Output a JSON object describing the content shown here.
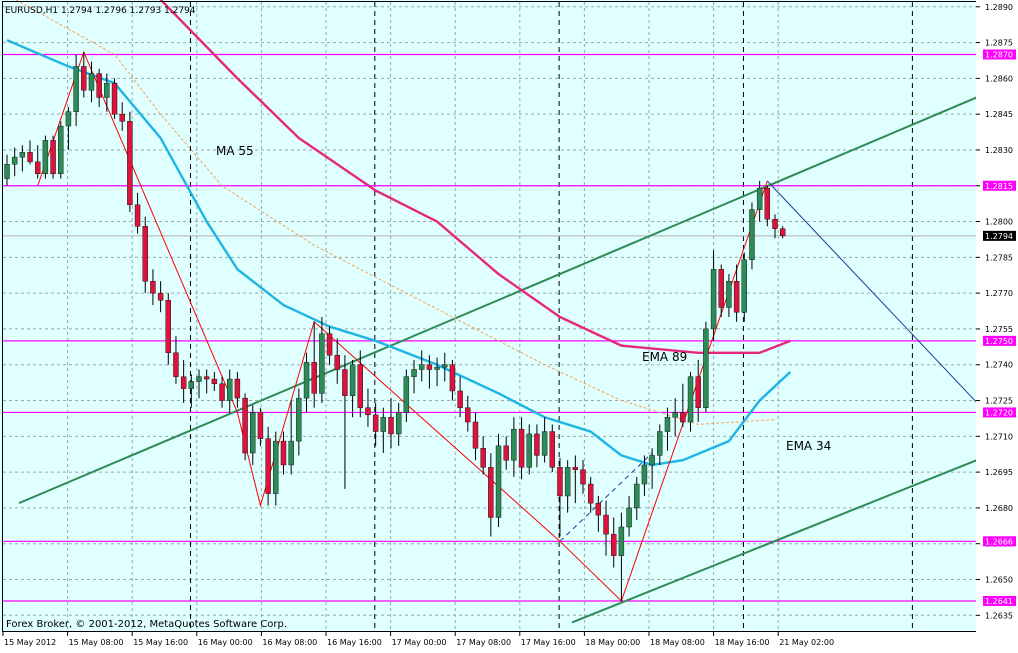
{
  "header": {
    "text": "EURUSD,H1  1.2794 1.2796 1.2793 1.2794"
  },
  "footer": {
    "copyright": "Forex Broker, © 2001-2012, MetaQuotes Software Corp."
  },
  "colors": {
    "background": "#e0ffff",
    "grid": "#9aa7a7",
    "bull_candle": "#2e8b57",
    "bear_candle": "#dc143c",
    "wick": "#000000",
    "ma55": "#f4a460",
    "ema34": "#1eb4e6",
    "ema89": "#e6287d",
    "channel": "#2e8b57",
    "horizontal_levels": "#ff00ff",
    "zigzag": "#ff0000",
    "projection": "#1e3c96",
    "separators": "#000000"
  },
  "chart_data": {
    "type": "candlestick",
    "symbol": "EURUSD",
    "timeframe": "H1",
    "ylim": [
      1.2628,
      1.2892
    ],
    "current_price": "1.2794",
    "y_ticks": [
      "1.2890",
      "1.2875",
      "1.2860",
      "1.2845",
      "1.2830",
      "1.2815",
      "1.2800",
      "1.2785",
      "1.2770",
      "1.2755",
      "1.2740",
      "1.2725",
      "1.2710",
      "1.2695",
      "1.2680",
      "1.2665",
      "1.2650",
      "1.2635"
    ],
    "x_ticks": [
      "15 May 2012",
      "15 May 08:00",
      "15 May 16:00",
      "16 May 00:00",
      "16 May 08:00",
      "16 May 16:00",
      "17 May 00:00",
      "17 May 08:00",
      "17 May 16:00",
      "18 May 00:00",
      "18 May 08:00",
      "18 May 16:00",
      "21 May 02:00"
    ],
    "horizontal_levels": [
      "1.2870",
      "1.2815",
      "1.2750",
      "1.2720",
      "1.2666",
      "1.2641"
    ],
    "annotations": [
      "MA 55",
      "EMA 89",
      "EMA 34"
    ],
    "candles_ohlc": [
      [
        1.2818,
        1.2828,
        1.2815,
        1.2824
      ],
      [
        1.2824,
        1.2831,
        1.2819,
        1.2827
      ],
      [
        1.2827,
        1.2832,
        1.2821,
        1.2829
      ],
      [
        1.2829,
        1.2834,
        1.2824,
        1.2825
      ],
      [
        1.2825,
        1.2832,
        1.2818,
        1.282
      ],
      [
        1.282,
        1.2836,
        1.2818,
        1.2834
      ],
      [
        1.2834,
        1.2836,
        1.2818,
        1.282
      ],
      [
        1.282,
        1.2842,
        1.2818,
        1.284
      ],
      [
        1.284,
        1.2848,
        1.283,
        1.2846
      ],
      [
        1.2846,
        1.287,
        1.284,
        1.2865
      ],
      [
        1.2865,
        1.2871,
        1.2852,
        1.2855
      ],
      [
        1.2855,
        1.2867,
        1.285,
        1.2862
      ],
      [
        1.2862,
        1.2864,
        1.2848,
        1.2852
      ],
      [
        1.2852,
        1.2862,
        1.2846,
        1.2858
      ],
      [
        1.2858,
        1.286,
        1.2843,
        1.2845
      ],
      [
        1.2845,
        1.285,
        1.2838,
        1.2842
      ],
      [
        1.2842,
        1.2846,
        1.2804,
        1.2807
      ],
      [
        1.2807,
        1.2812,
        1.2795,
        1.2798
      ],
      [
        1.2798,
        1.2802,
        1.277,
        1.2775
      ],
      [
        1.2775,
        1.278,
        1.2765,
        1.277
      ],
      [
        1.277,
        1.2775,
        1.2762,
        1.2767
      ],
      [
        1.2767,
        1.277,
        1.274,
        1.2745
      ],
      [
        1.2745,
        1.2752,
        1.2732,
        1.2735
      ],
      [
        1.2735,
        1.2742,
        1.2724,
        1.273
      ],
      [
        1.273,
        1.2736,
        1.2722,
        1.2733
      ],
      [
        1.2733,
        1.2738,
        1.2726,
        1.2735
      ],
      [
        1.2735,
        1.2738,
        1.2728,
        1.2734
      ],
      [
        1.2734,
        1.2737,
        1.2729,
        1.2732
      ],
      [
        1.2732,
        1.2735,
        1.2722,
        1.2725
      ],
      [
        1.2725,
        1.2738,
        1.272,
        1.2734
      ],
      [
        1.2734,
        1.2737,
        1.2722,
        1.2726
      ],
      [
        1.2726,
        1.2728,
        1.27,
        1.2703
      ],
      [
        1.2703,
        1.2723,
        1.2698,
        1.272
      ],
      [
        1.272,
        1.2722,
        1.2706,
        1.2709
      ],
      [
        1.2709,
        1.2714,
        1.2681,
        1.2686
      ],
      [
        1.2686,
        1.2712,
        1.2681,
        1.2708
      ],
      [
        1.2708,
        1.2712,
        1.2694,
        1.2698
      ],
      [
        1.2698,
        1.2725,
        1.2694,
        1.2708
      ],
      [
        1.2708,
        1.273,
        1.2702,
        1.2726
      ],
      [
        1.2726,
        1.2745,
        1.272,
        1.2741
      ],
      [
        1.2741,
        1.2758,
        1.2722,
        1.2728
      ],
      [
        1.2728,
        1.276,
        1.2724,
        1.2753
      ],
      [
        1.2753,
        1.2756,
        1.274,
        1.2744
      ],
      [
        1.2744,
        1.2751,
        1.2732,
        1.2738
      ],
      [
        1.2738,
        1.2744,
        1.2688,
        1.2727
      ],
      [
        1.2727,
        1.2742,
        1.2718,
        1.274
      ],
      [
        1.274,
        1.2746,
        1.2718,
        1.2722
      ],
      [
        1.2722,
        1.273,
        1.2714,
        1.2719
      ],
      [
        1.2719,
        1.2724,
        1.2706,
        1.2712
      ],
      [
        1.2712,
        1.2722,
        1.2703,
        1.2718
      ],
      [
        1.2718,
        1.2726,
        1.2705,
        1.2711
      ],
      [
        1.2711,
        1.2724,
        1.2706,
        1.272
      ],
      [
        1.272,
        1.2738,
        1.2716,
        1.2735
      ],
      [
        1.2735,
        1.2742,
        1.2728,
        1.2738
      ],
      [
        1.2738,
        1.2746,
        1.2733,
        1.274
      ],
      [
        1.274,
        1.2744,
        1.273,
        1.2738
      ],
      [
        1.2738,
        1.2743,
        1.2731,
        1.2739
      ],
      [
        1.2739,
        1.2745,
        1.2733,
        1.274
      ],
      [
        1.274,
        1.2742,
        1.2725,
        1.2729
      ],
      [
        1.2729,
        1.2735,
        1.2718,
        1.2722
      ],
      [
        1.2722,
        1.2727,
        1.2712,
        1.2716
      ],
      [
        1.2716,
        1.272,
        1.27,
        1.2705
      ],
      [
        1.2705,
        1.271,
        1.2694,
        1.2697
      ],
      [
        1.2697,
        1.2703,
        1.2668,
        1.2676
      ],
      [
        1.2676,
        1.2711,
        1.2672,
        1.2706
      ],
      [
        1.2706,
        1.271,
        1.2696,
        1.27
      ],
      [
        1.27,
        1.2718,
        1.2693,
        1.2713
      ],
      [
        1.2713,
        1.2718,
        1.2692,
        1.2697
      ],
      [
        1.2697,
        1.2715,
        1.2694,
        1.2711
      ],
      [
        1.2711,
        1.2715,
        1.2697,
        1.2702
      ],
      [
        1.2702,
        1.2718,
        1.2699,
        1.2712
      ],
      [
        1.2712,
        1.2715,
        1.2695,
        1.2697
      ],
      [
        1.2697,
        1.2701,
        1.2668,
        1.2685
      ],
      [
        1.2685,
        1.27,
        1.2678,
        1.2697
      ],
      [
        1.2697,
        1.2702,
        1.2682,
        1.2696
      ],
      [
        1.2696,
        1.27,
        1.2686,
        1.269
      ],
      [
        1.269,
        1.2693,
        1.2678,
        1.2682
      ],
      [
        1.2682,
        1.2685,
        1.267,
        1.2677
      ],
      [
        1.2677,
        1.2683,
        1.266,
        1.2669
      ],
      [
        1.2669,
        1.2676,
        1.2655,
        1.266
      ],
      [
        1.266,
        1.2678,
        1.2641,
        1.2672
      ],
      [
        1.2672,
        1.2685,
        1.2668,
        1.268
      ],
      [
        1.268,
        1.2693,
        1.2675,
        1.269
      ],
      [
        1.269,
        1.2702,
        1.2685,
        1.2698
      ],
      [
        1.2698,
        1.2705,
        1.2688,
        1.2702
      ],
      [
        1.2702,
        1.2715,
        1.2698,
        1.2712
      ],
      [
        1.2712,
        1.2722,
        1.2704,
        1.2718
      ],
      [
        1.2718,
        1.2726,
        1.271,
        1.272
      ],
      [
        1.272,
        1.2732,
        1.2714,
        1.2716
      ],
      [
        1.2716,
        1.2737,
        1.2712,
        1.2735
      ],
      [
        1.2735,
        1.2742,
        1.2716,
        1.2722
      ],
      [
        1.2722,
        1.2758,
        1.272,
        1.2755
      ],
      [
        1.2755,
        1.2788,
        1.275,
        1.278
      ],
      [
        1.278,
        1.2782,
        1.276,
        1.2764
      ],
      [
        1.2764,
        1.2778,
        1.276,
        1.2775
      ],
      [
        1.2775,
        1.2782,
        1.2758,
        1.2762
      ],
      [
        1.2762,
        1.2787,
        1.2758,
        1.2784
      ],
      [
        1.2784,
        1.2808,
        1.278,
        1.2805
      ],
      [
        1.2805,
        1.2817,
        1.28,
        1.2814
      ],
      [
        1.2814,
        1.2815,
        1.2798,
        1.2801
      ],
      [
        1.2801,
        1.2803,
        1.2793,
        1.2797
      ],
      [
        1.2797,
        1.2798,
        1.2793,
        1.2794
      ]
    ],
    "ma55": [
      [
        0,
        1.2895
      ],
      [
        14,
        1.287
      ],
      [
        20,
        1.2845
      ],
      [
        28,
        1.2815
      ],
      [
        40,
        1.279
      ],
      [
        55,
        1.2765
      ],
      [
        70,
        1.274
      ],
      [
        80,
        1.2725
      ],
      [
        90,
        1.2715
      ],
      [
        100,
        1.2717
      ]
    ],
    "ema34": [
      [
        0,
        1.2876
      ],
      [
        8,
        1.2865
      ],
      [
        14,
        1.2858
      ],
      [
        20,
        1.2835
      ],
      [
        26,
        1.28
      ],
      [
        30,
        1.278
      ],
      [
        36,
        1.2765
      ],
      [
        42,
        1.2756
      ],
      [
        48,
        1.275
      ],
      [
        56,
        1.274
      ],
      [
        64,
        1.2728
      ],
      [
        70,
        1.2718
      ],
      [
        76,
        1.2712
      ],
      [
        80,
        1.2702
      ],
      [
        84,
        1.2698
      ],
      [
        88,
        1.27
      ],
      [
        94,
        1.2708
      ],
      [
        98,
        1.2725
      ],
      [
        102,
        1.2737
      ]
    ],
    "ema89": [
      [
        20,
        1.2893
      ],
      [
        30,
        1.286
      ],
      [
        38,
        1.2835
      ],
      [
        48,
        1.2813
      ],
      [
        56,
        1.28
      ],
      [
        64,
        1.2778
      ],
      [
        72,
        1.276
      ],
      [
        80,
        1.2748
      ],
      [
        90,
        1.2745
      ],
      [
        98,
        1.2745
      ],
      [
        102,
        1.275
      ]
    ],
    "zigzag": [
      [
        4,
        1.2815
      ],
      [
        10,
        1.2871
      ],
      [
        30,
        1.272
      ],
      [
        33,
        1.2681
      ],
      [
        40,
        1.2758
      ],
      [
        72,
        1.2666
      ],
      [
        80,
        1.2641
      ],
      [
        99,
        1.2817
      ]
    ],
    "projection": [
      [
        99,
        1.2817
      ],
      [
        123,
        1.2722
      ]
    ],
    "dashed_segment": [
      [
        72,
        1.2666
      ],
      [
        84,
        1.2703
      ]
    ],
    "channel_upper": [
      [
        0,
        1.2682
      ],
      [
        123,
        1.2852
      ]
    ],
    "channel_lower": [
      [
        72,
        1.2632
      ],
      [
        123,
        1.27
      ]
    ],
    "session_separators": [
      24,
      48,
      72,
      96,
      118
    ]
  }
}
